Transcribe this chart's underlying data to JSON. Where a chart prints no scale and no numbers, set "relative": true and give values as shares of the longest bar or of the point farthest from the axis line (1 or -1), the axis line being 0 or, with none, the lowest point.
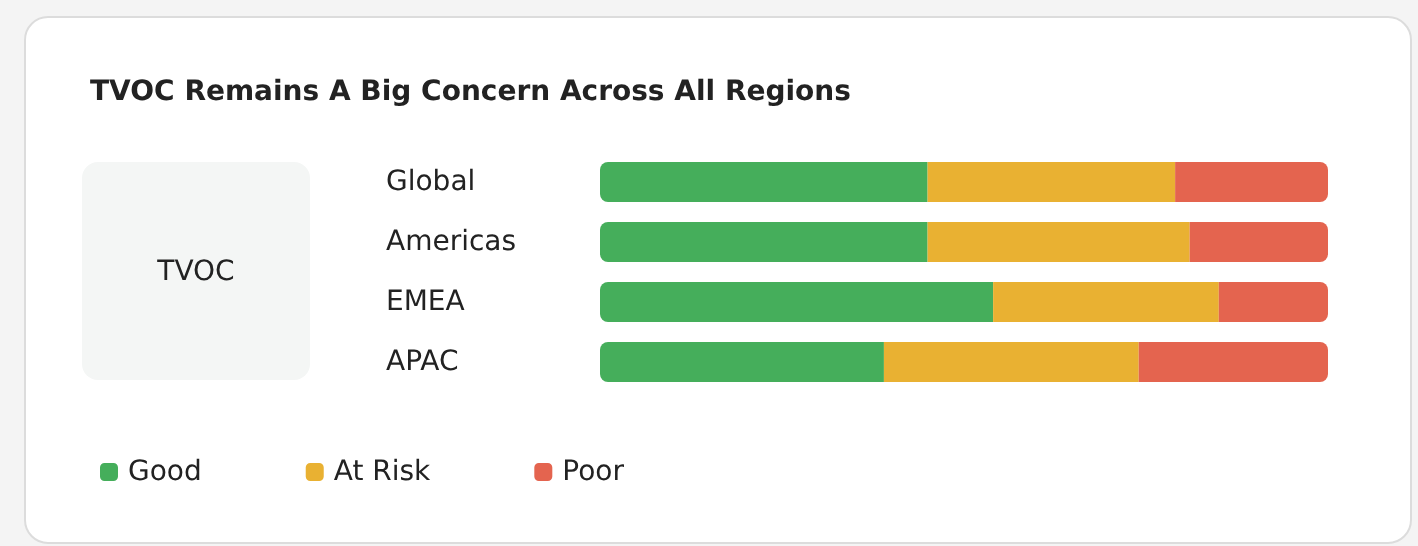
{
  "chart_data": {
    "type": "bar",
    "title": "TVOC Remains A Big Concern Across All Regions",
    "annotations": [
      "TVOC"
    ],
    "categories": [
      "Global",
      "Americas",
      "EMEA",
      "APAC"
    ],
    "orientation": "horizontal",
    "stacked": true,
    "relative": true,
    "legend": "bottom left",
    "series": [
      {
        "name": "Good",
        "color": "#45ae5b",
        "values": [
          0.45,
          0.45,
          0.54,
          0.39
        ]
      },
      {
        "name": "At Risk",
        "color": "#e9b132",
        "values": [
          0.34,
          0.36,
          0.31,
          0.35
        ]
      },
      {
        "name": "Poor",
        "color": "#e4644f",
        "values": [
          0.21,
          0.19,
          0.15,
          0.26
        ]
      }
    ]
  }
}
